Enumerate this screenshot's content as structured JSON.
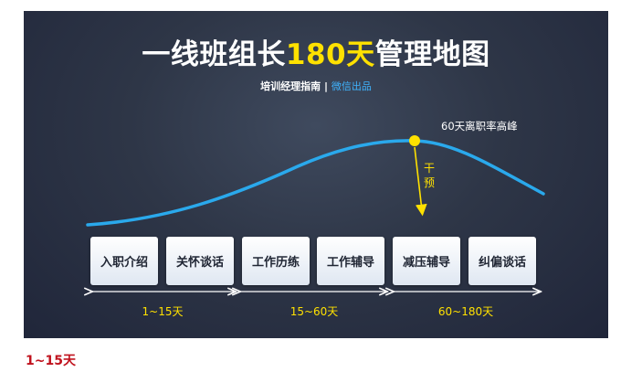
{
  "slide": {
    "title_pre": "一线班组长",
    "title_highlight": "180天",
    "title_post": "管理地图",
    "subtitle_main": "培训经理指南 | ",
    "subtitle_accent": "微信出品",
    "peak_label": "60天离职率高峰",
    "intervene_chars": [
      "干",
      "预"
    ],
    "phases": [
      "入职介绍",
      "关怀谈话",
      "工作历练",
      "工作辅导",
      "减压辅导",
      "纠偏谈话"
    ],
    "ranges": [
      "1~15天",
      "15~60天",
      "60~180天"
    ]
  },
  "caption": "1~15天",
  "colors": {
    "background": "#2a3142",
    "curve": "#2aa9ec",
    "highlight": "#ffe100",
    "caption": "#c0121d"
  }
}
